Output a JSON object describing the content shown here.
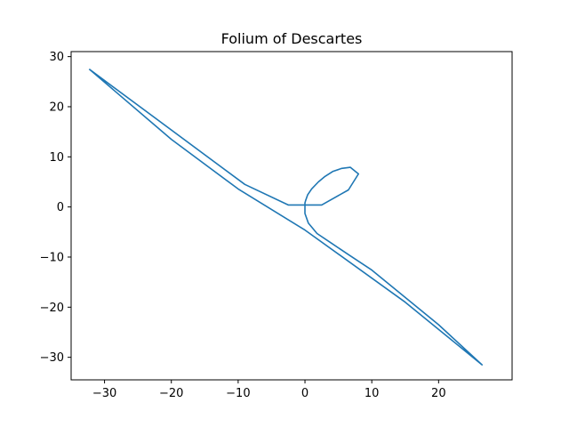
{
  "chart_data": {
    "type": "line",
    "title": "Folium of Descartes",
    "xlabel": "",
    "ylabel": "",
    "xlim": [
      -35,
      31
    ],
    "ylim": [
      -34.5,
      31
    ],
    "xticks": [
      -30,
      -20,
      -10,
      0,
      10,
      20
    ],
    "yticks": [
      -30,
      -20,
      -10,
      0,
      10,
      20,
      30
    ],
    "xtick_labels": [
      "−30",
      "−20",
      "−10",
      "0",
      "10",
      "20"
    ],
    "ytick_labels": [
      "−30",
      "−20",
      "−10",
      "0",
      "10",
      "20",
      "30"
    ],
    "grid": false,
    "series": [
      {
        "color": "#1f77b4",
        "x": [
          -32.3,
          -9.0,
          -2.5,
          2.5,
          6.5,
          8.0,
          6.8,
          5.5,
          4.2,
          3.0,
          2.0,
          1.0,
          0.4,
          0.1,
          0.0,
          0.0,
          0.5,
          1.8,
          3.8,
          6.5,
          10.0,
          20.0,
          26.5,
          15.0,
          0.0,
          -10.0,
          -20.0,
          -32.3
        ],
        "y": [
          27.5,
          4.5,
          0.4,
          0.4,
          3.4,
          6.6,
          7.9,
          7.7,
          7.1,
          6.1,
          5.0,
          3.6,
          2.4,
          1.3,
          0.8,
          -1.3,
          -3.2,
          -5.3,
          -7.1,
          -9.5,
          -12.6,
          -23.5,
          -31.5,
          -19.0,
          -4.6,
          3.6,
          13.5,
          27.5
        ]
      }
    ]
  }
}
